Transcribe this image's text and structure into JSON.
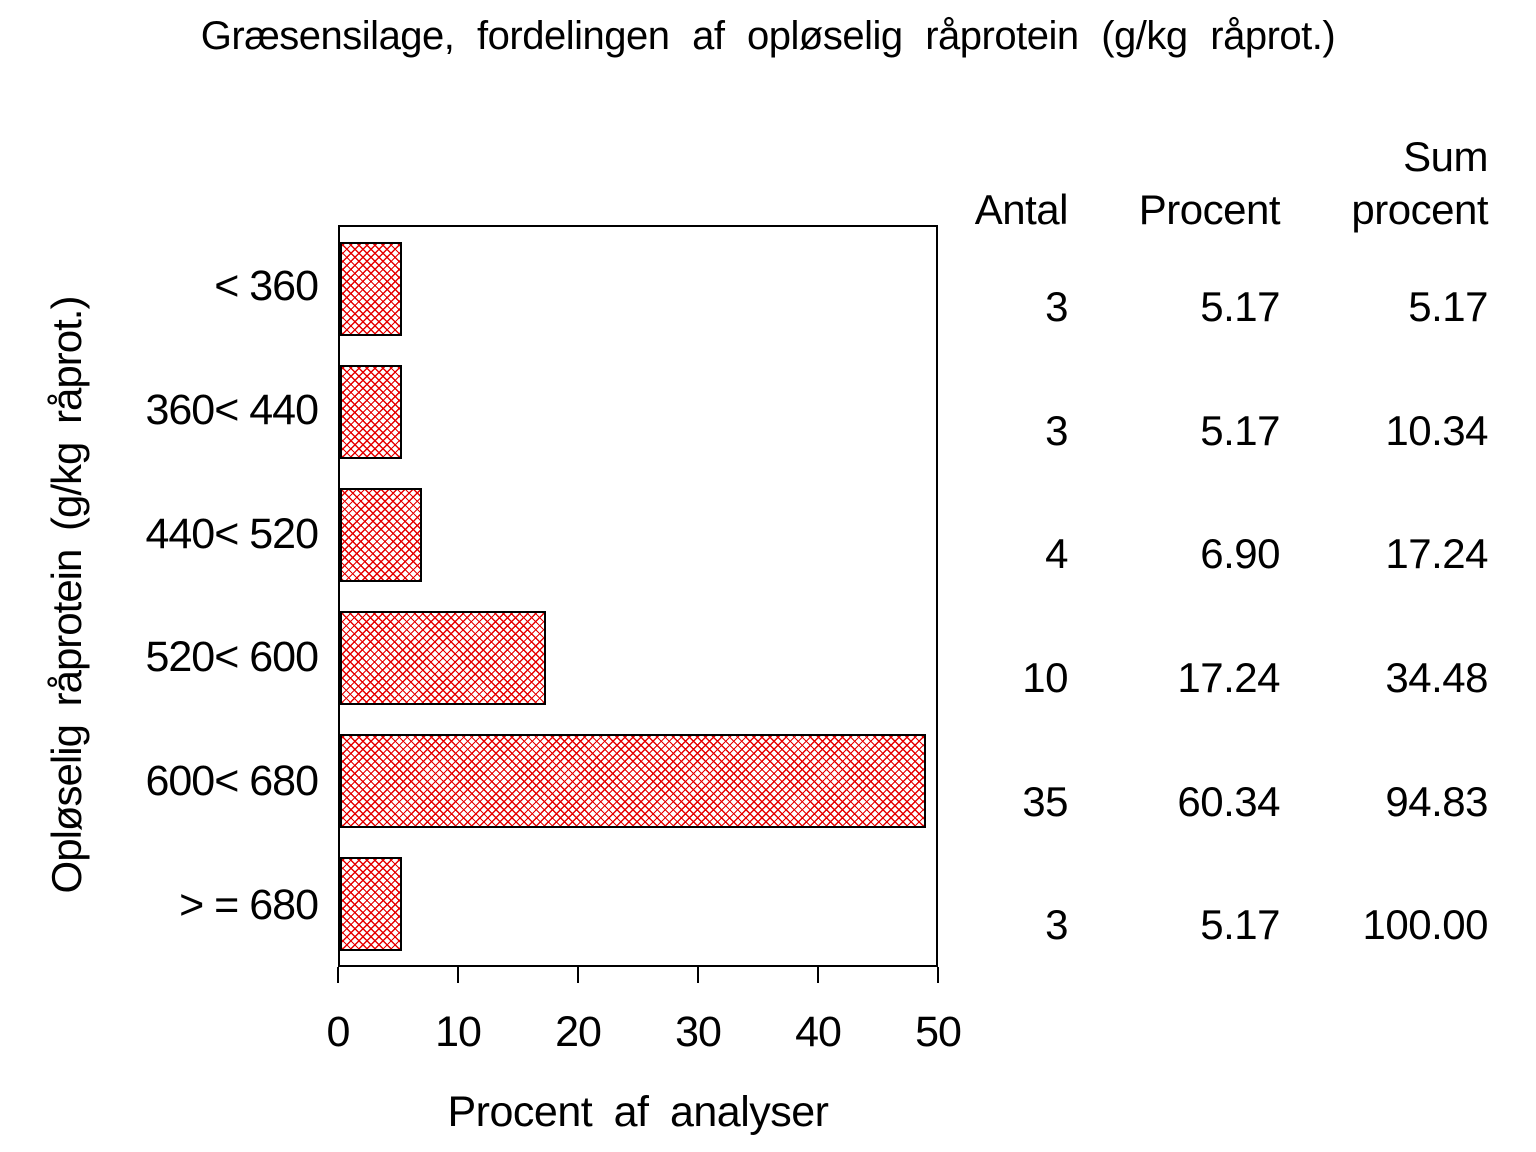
{
  "page": {
    "background": "#ffffff",
    "text_color": "#000000"
  },
  "chart_data": {
    "type": "bar",
    "orientation": "horizontal",
    "title": "Græsensilage, fordelingen af opløselig råprotein (g/kg råprot.)",
    "xlabel": "Procent af analyser",
    "ylabel": "Opløselig råprotein (g/kg råprot.)",
    "categories": [
      "< 360",
      "360< 440",
      "440< 520",
      "520< 600",
      "600< 680",
      "> = 680"
    ],
    "series": [
      {
        "name": "Procent af analyser",
        "values": [
          5.17,
          5.17,
          6.9,
          17.24,
          60.34,
          5.17
        ]
      },
      {
        "name": "Antal",
        "values": [
          3,
          3,
          4,
          10,
          35,
          3
        ]
      },
      {
        "name": "Sum procent",
        "values": [
          5.17,
          10.34,
          17.24,
          34.48,
          94.83,
          100.0
        ]
      }
    ],
    "xlim": [
      0,
      50
    ],
    "x_ticks": [
      "0",
      "10",
      "20",
      "30",
      "40",
      "50"
    ],
    "grid": false,
    "legend": false,
    "bar_fill": "red diagonal crosshatch on white",
    "bar_line_color": "#e60000",
    "bar_border_color": "#000000",
    "bar_display_clip_at": 49.2
  },
  "table": {
    "headers": {
      "antal": "Antal",
      "procent": "Procent",
      "sum_line1": "Sum",
      "sum_line2": "procent"
    },
    "rows": [
      {
        "antal": "3",
        "procent": "5.17",
        "sum_procent": "5.17"
      },
      {
        "antal": "3",
        "procent": "5.17",
        "sum_procent": "10.34"
      },
      {
        "antal": "4",
        "procent": "6.90",
        "sum_procent": "17.24"
      },
      {
        "antal": "10",
        "procent": "17.24",
        "sum_procent": "34.48"
      },
      {
        "antal": "35",
        "procent": "60.34",
        "sum_procent": "94.83"
      },
      {
        "antal": "3",
        "procent": "5.17",
        "sum_procent": "100.00"
      }
    ]
  }
}
